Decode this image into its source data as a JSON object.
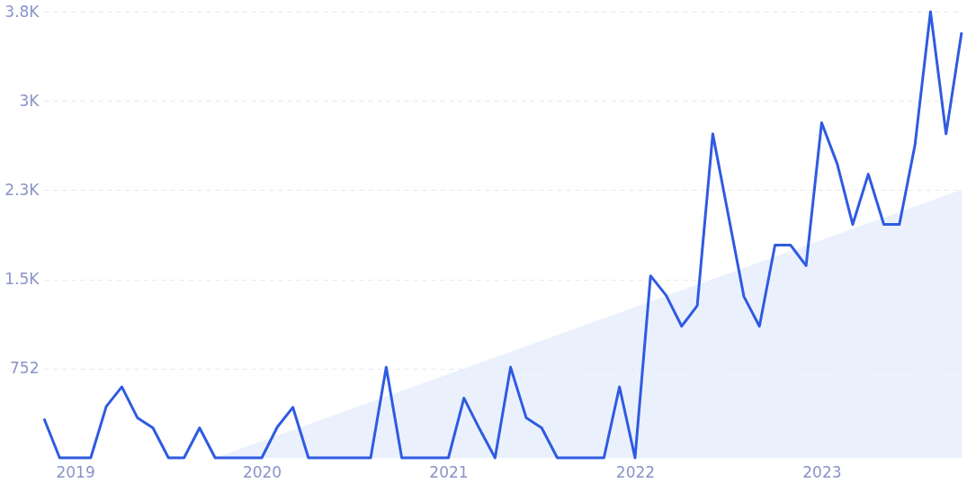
{
  "chart_data": {
    "type": "line",
    "x": [
      "2018-11",
      "2018-12",
      "2019-01",
      "2019-02",
      "2019-03",
      "2019-04",
      "2019-05",
      "2019-06",
      "2019-07",
      "2019-08",
      "2019-09",
      "2019-10",
      "2019-11",
      "2019-12",
      "2020-01",
      "2020-02",
      "2020-03",
      "2020-04",
      "2020-05",
      "2020-06",
      "2020-07",
      "2020-08",
      "2020-09",
      "2020-10",
      "2020-11",
      "2020-12",
      "2021-01",
      "2021-02",
      "2021-03",
      "2021-04",
      "2021-05",
      "2021-06",
      "2021-07",
      "2021-08",
      "2021-09",
      "2021-10",
      "2021-11",
      "2021-12",
      "2022-01",
      "2022-02",
      "2022-03",
      "2022-04",
      "2022-05",
      "2022-06",
      "2022-07",
      "2022-08",
      "2022-09",
      "2022-10",
      "2022-11",
      "2022-12",
      "2023-01",
      "2023-02",
      "2023-03",
      "2023-04",
      "2023-05",
      "2023-06",
      "2023-07",
      "2023-08",
      "2023-09",
      "2023-10"
    ],
    "series": [
      {
        "color": "#2f5be0",
        "values": [
          330,
          0,
          0,
          0,
          433,
          598,
          338,
          252,
          0,
          0,
          252,
          0,
          0,
          0,
          0,
          260,
          425,
          0,
          0,
          0,
          0,
          0,
          763,
          0,
          0,
          0,
          0,
          503,
          244,
          0,
          763,
          338,
          252,
          0,
          0,
          0,
          0,
          598,
          0,
          1534,
          1369,
          1109,
          1282,
          2730,
          2045,
          1360,
          1109,
          1793,
          1793,
          1620,
          2824,
          2478,
          1967,
          2391,
          1967,
          1967,
          2635,
          3760,
          2730,
          3586
        ]
      },
      {
        "type": "area",
        "color": "#dce8fb",
        "x": [
          "2019-10",
          "2023-10"
        ],
        "values": [
          0,
          2260
        ]
      }
    ],
    "xlim": [
      "2018-11",
      "2023-10"
    ],
    "xticks": [
      "2019",
      "2020",
      "2021",
      "2022",
      "2023"
    ],
    "ylim": [
      0,
      3760
    ],
    "yticks": [
      {
        "value": 752,
        "label": "752"
      },
      {
        "value": 1504,
        "label": "1.5K"
      },
      {
        "value": 2256,
        "label": "2.3K"
      },
      {
        "value": 3008,
        "label": "3K"
      },
      {
        "value": 3760,
        "label": "3.8K"
      }
    ],
    "grid": "y",
    "line_style": "solid",
    "marker": "none"
  }
}
